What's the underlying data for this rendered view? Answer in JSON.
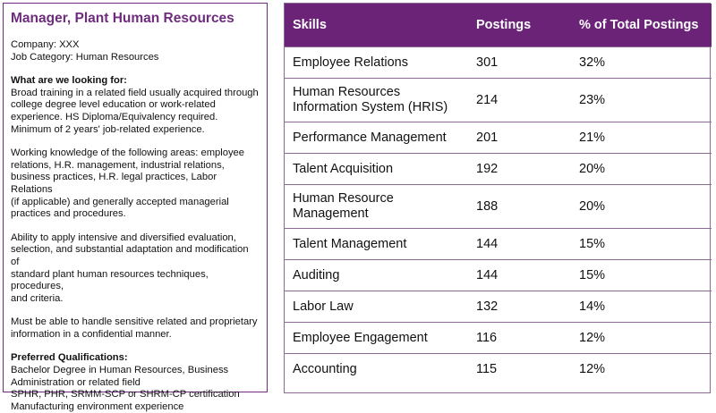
{
  "job": {
    "title": "Manager, Plant Human Resources",
    "company": "Company: XXX",
    "category": "Job Category: Human Resources",
    "looking_for_heading": "What are we looking for:",
    "looking_for_lines": [
      "Broad training in a related field usually acquired through",
      "college degree level education or work-related",
      "experience. HS Diploma/Equivalency required.",
      "Minimum of 2 years' job-related experience."
    ],
    "knowledge_lines": [
      "Working knowledge of the following areas: employee",
      "relations, H.R. management, industrial relations,",
      "business practices, H.R. legal practices, Labor Relations",
      "(if applicable) and generally accepted managerial",
      "practices and procedures."
    ],
    "ability_lines": [
      "Ability to apply intensive and diversified evaluation,",
      "selection, and substantial adaptation and modification of",
      "standard plant human resources techniques, procedures,",
      "and criteria."
    ],
    "confidential_lines": [
      "Must be able to handle sensitive related and proprietary",
      "information in a confidential manner."
    ],
    "preferred_heading": "Preferred Qualifications:",
    "preferred_lines": [
      "Bachelor Degree in Human Resources, Business",
      "Administration or related field",
      "SPHR, PHR, SRMM-SCP or SHRM-CP certification",
      "Manufacturing environment experience"
    ]
  },
  "table": {
    "headers": [
      "Skills",
      "Postings",
      "% of Total Postings"
    ],
    "rows": [
      {
        "skill": "Employee Relations",
        "postings": "301",
        "pct": "32%"
      },
      {
        "skill": "Human Resources Information System (HRIS)",
        "postings": "214",
        "pct": "23%"
      },
      {
        "skill": "Performance Management",
        "postings": "201",
        "pct": "21%"
      },
      {
        "skill": "Talent Acquisition",
        "postings": "192",
        "pct": "20%"
      },
      {
        "skill": "Human Resource Management",
        "postings": "188",
        "pct": "20%"
      },
      {
        "skill": "Talent Management",
        "postings": "144",
        "pct": "15%"
      },
      {
        "skill": "Auditing",
        "postings": "144",
        "pct": "15%"
      },
      {
        "skill": "Labor Law",
        "postings": "132",
        "pct": "14%"
      },
      {
        "skill": "Employee Engagement",
        "postings": "116",
        "pct": "12%"
      },
      {
        "skill": "Accounting",
        "postings": "115",
        "pct": "12%"
      }
    ]
  },
  "colors": {
    "accent": "#6b2378",
    "title": "#6f2c7e"
  }
}
